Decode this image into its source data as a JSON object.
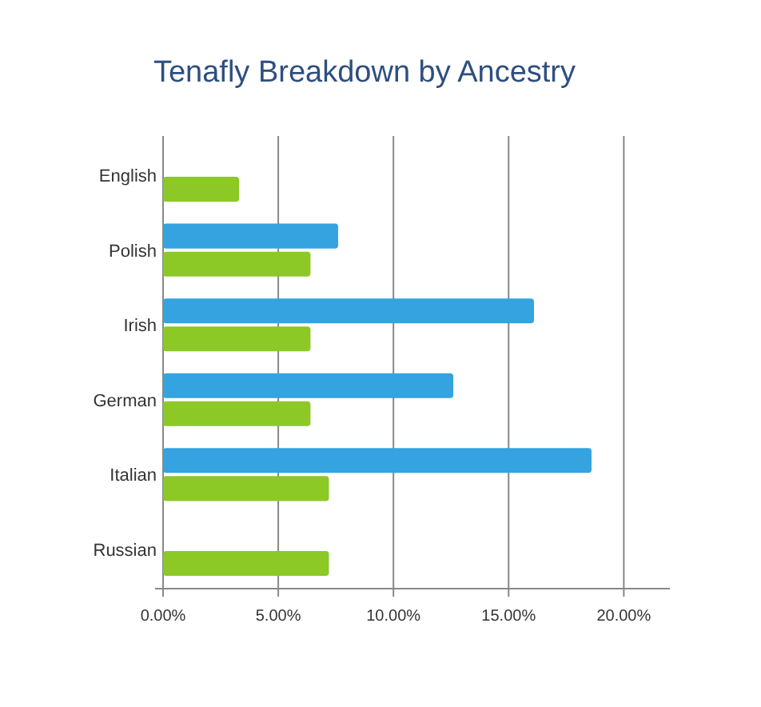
{
  "chart_data": {
    "type": "bar",
    "orientation": "horizontal",
    "title": "Tenafly Breakdown by Ancestry",
    "categories": [
      "English",
      "Polish",
      "Irish",
      "German",
      "Italian",
      "Russian"
    ],
    "series": [
      {
        "color": "#34a3e0",
        "values": [
          null,
          7.6,
          16.1,
          12.6,
          18.6,
          null
        ]
      },
      {
        "color": "#8cc826",
        "values": [
          3.3,
          6.4,
          6.4,
          6.4,
          7.2,
          7.2
        ]
      }
    ],
    "xlim": [
      0,
      22
    ],
    "xticks": [
      {
        "value": 0,
        "label": "0.00%"
      },
      {
        "value": 5,
        "label": "5.00%"
      },
      {
        "value": 10,
        "label": "10.00%"
      },
      {
        "value": 15,
        "label": "15.00%"
      },
      {
        "value": 20,
        "label": "20.00%"
      }
    ],
    "grid": "x"
  }
}
